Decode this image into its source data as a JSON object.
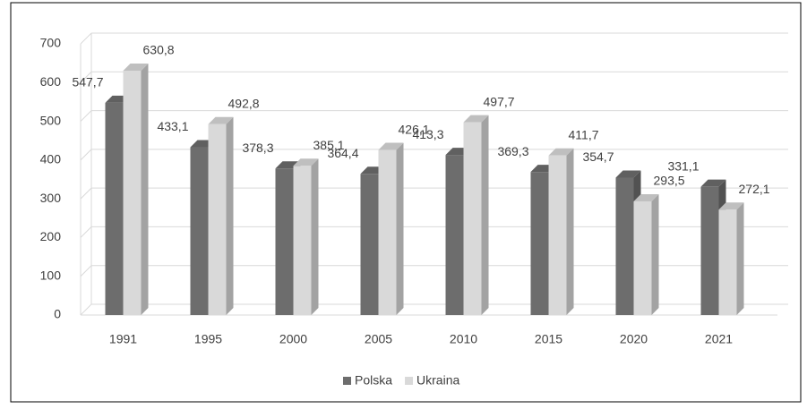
{
  "chart_data": {
    "type": "bar",
    "categories": [
      "1991",
      "1995",
      "2000",
      "2005",
      "2010",
      "2015",
      "2020",
      "2021"
    ],
    "series": [
      {
        "name": "Polska",
        "color": "#6d6d6d",
        "values": [
          547.7,
          433.1,
          378.3,
          364.4,
          413.3,
          369.3,
          354.7,
          331.1
        ],
        "value_labels": [
          "547,7",
          "433,1",
          "378,3",
          "364,4",
          "413,3",
          "369,3",
          "354,7",
          "331,1"
        ]
      },
      {
        "name": "Ukraina",
        "color": "#d9d9d9",
        "values": [
          630.8,
          492.8,
          385.1,
          426.1,
          497.7,
          411.7,
          293.5,
          272.1
        ],
        "value_labels": [
          "630,8",
          "492,8",
          "385,1",
          "426,1",
          "497,7",
          "411,7",
          "293,5",
          "272,1"
        ]
      }
    ],
    "ylim": [
      0,
      700
    ],
    "yticks": [
      0,
      100,
      200,
      300,
      400,
      500,
      600,
      700
    ],
    "grid": true,
    "legend": "bottom"
  }
}
